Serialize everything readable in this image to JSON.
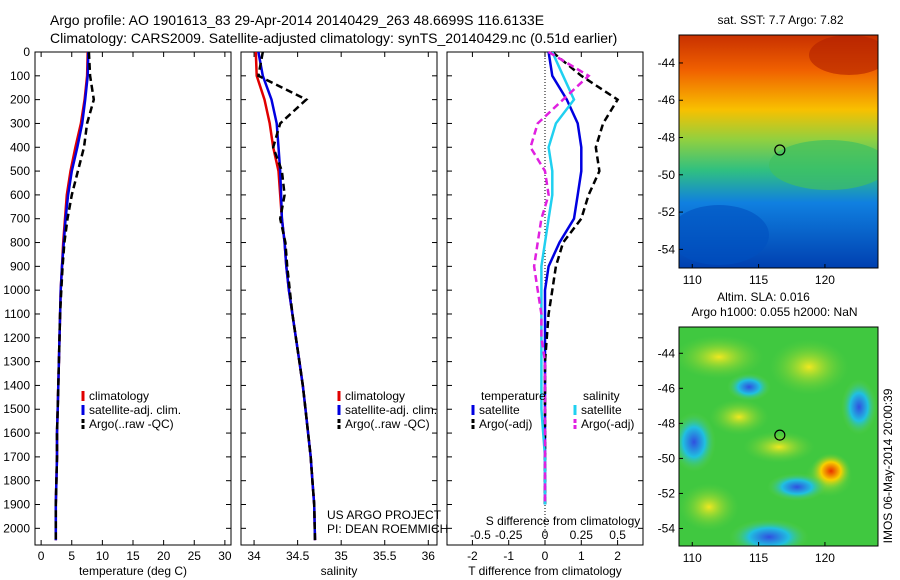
{
  "header": {
    "line1": "Argo profile: AO 1901613_83 29-Apr-2014 20140429_263 48.6699S 116.6133E",
    "line2": "Climatology: CARS2009. Satellite-adjusted climatology: synTS_20140429.nc (0.51d earlier)"
  },
  "colors": {
    "climatology": "#e00000",
    "satellite": "#0000e0",
    "argo": "#000000",
    "sat_salinity": "#20d0f0",
    "argo_salinity": "#e020e0"
  },
  "chart_data": [
    {
      "type": "line",
      "name": "temperature-panel",
      "xlabel": "temperature (deg C)",
      "xlim": [
        -1,
        31
      ],
      "ylim": [
        2070,
        0
      ],
      "xticks": [
        "0",
        "5",
        "10",
        "15",
        "20",
        "25",
        "30"
      ],
      "xtick_values": [
        0,
        5,
        10,
        15,
        20,
        25,
        30
      ],
      "yticks": [
        "0",
        "100",
        "200",
        "300",
        "400",
        "500",
        "600",
        "700",
        "800",
        "900",
        "1000",
        "1100",
        "1200",
        "1300",
        "1400",
        "1500",
        "1600",
        "1700",
        "1800",
        "1900",
        "2000"
      ],
      "ytick_values": [
        0,
        100,
        200,
        300,
        400,
        500,
        600,
        700,
        800,
        900,
        1000,
        1100,
        1200,
        1300,
        1400,
        1500,
        1600,
        1700,
        1800,
        1900,
        2000
      ],
      "legend": [
        "climatology",
        "satellite-adj. clim.",
        "Argo(..raw -QC)"
      ],
      "series": [
        {
          "key": "climatology",
          "x": [
            7.6,
            7.5,
            7.1,
            6.5,
            5.6,
            4.8,
            4.2,
            3.9,
            3.6,
            3.4,
            3.2,
            3.1,
            3.0,
            2.9,
            2.8,
            2.7,
            2.6,
            2.6,
            2.5,
            2.4,
            2.4
          ],
          "y": [
            0,
            100,
            200,
            300,
            400,
            500,
            600,
            700,
            800,
            900,
            1000,
            1100,
            1200,
            1300,
            1400,
            1500,
            1600,
            1700,
            1800,
            1900,
            2050
          ]
        },
        {
          "key": "satellite",
          "x": [
            7.7,
            7.6,
            7.2,
            6.7,
            5.9,
            5.0,
            4.4,
            4.0,
            3.7,
            3.4,
            3.2,
            3.1,
            3.0,
            2.9,
            2.8,
            2.7,
            2.6,
            2.6,
            2.5,
            2.4,
            2.4
          ],
          "y": [
            0,
            100,
            200,
            300,
            400,
            500,
            600,
            700,
            800,
            900,
            1000,
            1100,
            1200,
            1300,
            1400,
            1500,
            1600,
            1700,
            1800,
            1900,
            2050
          ]
        },
        {
          "key": "argo",
          "x": [
            7.8,
            8.0,
            8.6,
            7.5,
            7.0,
            6.0,
            5.0,
            4.3,
            3.8,
            3.5,
            3.3,
            3.1,
            3.0,
            2.9,
            2.8,
            2.7,
            2.6,
            2.6,
            2.5,
            2.4,
            2.4
          ],
          "y": [
            0,
            100,
            200,
            300,
            400,
            500,
            600,
            700,
            800,
            900,
            1000,
            1100,
            1200,
            1300,
            1400,
            1500,
            1600,
            1700,
            1800,
            1900,
            2050
          ]
        }
      ]
    },
    {
      "type": "line",
      "name": "salinity-panel",
      "xlabel": "salinity",
      "xlim": [
        33.85,
        36.1
      ],
      "ylim": [
        2070,
        0
      ],
      "xticks": [
        "34",
        "34.5",
        "35",
        "35.5",
        "36"
      ],
      "xtick_values": [
        34,
        34.5,
        35,
        35.5,
        36
      ],
      "legend": [
        "climatology",
        "satellite-adj. clim.",
        "Argo(..raw -QC)"
      ],
      "annotation": [
        "US ARGO PROJECT",
        "PI: DEAN ROEMMICH"
      ],
      "series": [
        {
          "key": "climatology",
          "x": [
            34.02,
            34.03,
            34.12,
            34.18,
            34.22,
            34.28,
            34.3,
            34.32,
            34.35,
            34.37,
            34.4,
            34.44,
            34.48,
            34.52,
            34.56,
            34.59,
            34.62,
            34.65,
            34.67,
            34.69,
            34.7
          ],
          "y": [
            0,
            100,
            200,
            300,
            400,
            500,
            600,
            700,
            800,
            900,
            1000,
            1100,
            1200,
            1300,
            1400,
            1500,
            1600,
            1700,
            1800,
            1900,
            2050
          ]
        },
        {
          "key": "satellite",
          "x": [
            34.05,
            34.1,
            34.2,
            34.26,
            34.28,
            34.3,
            34.31,
            34.32,
            34.35,
            34.37,
            34.4,
            34.44,
            34.48,
            34.52,
            34.56,
            34.59,
            34.62,
            34.65,
            34.67,
            34.69,
            34.7
          ],
          "y": [
            0,
            100,
            200,
            300,
            400,
            500,
            600,
            700,
            800,
            900,
            1000,
            1100,
            1200,
            1300,
            1400,
            1500,
            1600,
            1700,
            1800,
            1900,
            2050
          ]
        },
        {
          "key": "argo",
          "x": [
            34.1,
            34.05,
            34.6,
            34.3,
            34.22,
            34.32,
            34.35,
            34.3,
            34.36,
            34.38,
            34.41,
            34.44,
            34.48,
            34.52,
            34.56,
            34.59,
            34.62,
            34.65,
            34.67,
            34.69,
            34.7
          ],
          "y": [
            0,
            100,
            200,
            300,
            400,
            500,
            600,
            700,
            800,
            900,
            1000,
            1100,
            1200,
            1300,
            1400,
            1500,
            1600,
            1700,
            1800,
            1900,
            2050
          ]
        }
      ]
    },
    {
      "type": "line",
      "name": "difference-panel",
      "xlabel": "T difference from climatology",
      "xlabel_top": "S difference from climatology",
      "xlim": [
        -2.7,
        2.7
      ],
      "ylim": [
        2070,
        0
      ],
      "xticks": [
        "-2",
        "-1",
        "0",
        "1",
        "2"
      ],
      "xtick_values": [
        -2,
        -1,
        0,
        1,
        2
      ],
      "xticks_top": [
        "-0.5",
        "-0.25",
        "0",
        "0.25",
        "0.5"
      ],
      "xtick_values_top": [
        -2,
        -1,
        0,
        1,
        2
      ],
      "legend_titles": [
        "temperature",
        "salinity"
      ],
      "legend": [
        "satellite",
        "Argo(-adj)",
        "satellite",
        "Argo(-adj)"
      ],
      "series": [
        {
          "key": "satellite",
          "x": [
            0.1,
            0.2,
            0.6,
            0.9,
            1.0,
            1.0,
            0.9,
            0.8,
            0.4,
            0.1,
            0.0,
            0.0,
            0.0,
            0.0,
            0.0,
            0.0,
            0.0,
            0.0,
            0.0,
            0.0
          ],
          "y": [
            0,
            100,
            200,
            300,
            400,
            500,
            600,
            700,
            800,
            900,
            1000,
            1100,
            1200,
            1300,
            1400,
            1500,
            1600,
            1700,
            1800,
            1900
          ]
        },
        {
          "key": "argo",
          "x": [
            0.2,
            1.0,
            2.0,
            1.6,
            1.4,
            1.5,
            1.2,
            1.0,
            0.5,
            0.3,
            0.2,
            0.1,
            0.05,
            0.0,
            0.0,
            0.0,
            0.0,
            0.0,
            0.0,
            0.0
          ],
          "y": [
            0,
            100,
            200,
            300,
            400,
            500,
            600,
            700,
            800,
            900,
            1000,
            1100,
            1200,
            1300,
            1400,
            1500,
            1600,
            1700,
            1800,
            1900
          ]
        },
        {
          "key": "sat_salinity",
          "x": [
            0.2,
            0.5,
            0.8,
            0.3,
            0.1,
            0.2,
            0.2,
            0.1,
            0.0,
            -0.1,
            -0.1,
            -0.1,
            -0.1,
            -0.1,
            -0.1,
            -0.1,
            -0.05,
            0.0,
            0.0,
            0.0
          ],
          "y": [
            0,
            100,
            200,
            300,
            400,
            500,
            600,
            700,
            800,
            900,
            1000,
            1100,
            1200,
            1300,
            1400,
            1500,
            1600,
            1700,
            1800,
            1900
          ]
        },
        {
          "key": "argo_salinity",
          "x": [
            0.1,
            1.2,
            0.5,
            -0.2,
            -0.4,
            0.0,
            0.1,
            -0.1,
            -0.2,
            -0.3,
            -0.2,
            -0.1,
            -0.1,
            0.0,
            0.0,
            0.0,
            0.0,
            0.0,
            0.0,
            0.0
          ],
          "y": [
            0,
            100,
            200,
            300,
            400,
            500,
            600,
            700,
            800,
            900,
            1000,
            1100,
            1200,
            1300,
            1400,
            1500,
            1600,
            1700,
            1800,
            1900
          ]
        }
      ]
    },
    {
      "type": "heatmap",
      "name": "sst-map",
      "title": "sat. SST: 7.7 Argo: 7.82",
      "xlim": [
        109,
        124
      ],
      "ylim": [
        -55,
        -42.5
      ],
      "xticks": [
        "110",
        "115",
        "120"
      ],
      "xtick_values": [
        110,
        115,
        120
      ],
      "yticks": [
        "-44",
        "-46",
        "-48",
        "-50",
        "-52",
        "-54"
      ],
      "ytick_values": [
        -44,
        -46,
        -48,
        -50,
        -52,
        -54
      ],
      "marker": {
        "lon": 116.6,
        "lat": -48.67
      }
    },
    {
      "type": "heatmap",
      "name": "sla-map",
      "title": "Altim. SLA: 0.016",
      "subtitle": "Argo h1000: 0.055 h2000: NaN",
      "side_label": "IMOS 06-May-2014 20:00:39",
      "xlim": [
        109,
        124
      ],
      "ylim": [
        -55,
        -42.5
      ],
      "xticks": [
        "110",
        "115",
        "120"
      ],
      "xtick_values": [
        110,
        115,
        120
      ],
      "yticks": [
        "-44",
        "-46",
        "-48",
        "-50",
        "-52",
        "-54"
      ],
      "ytick_values": [
        -44,
        -46,
        -48,
        -50,
        -52,
        -54
      ],
      "marker": {
        "lon": 116.6,
        "lat": -48.67
      }
    }
  ]
}
